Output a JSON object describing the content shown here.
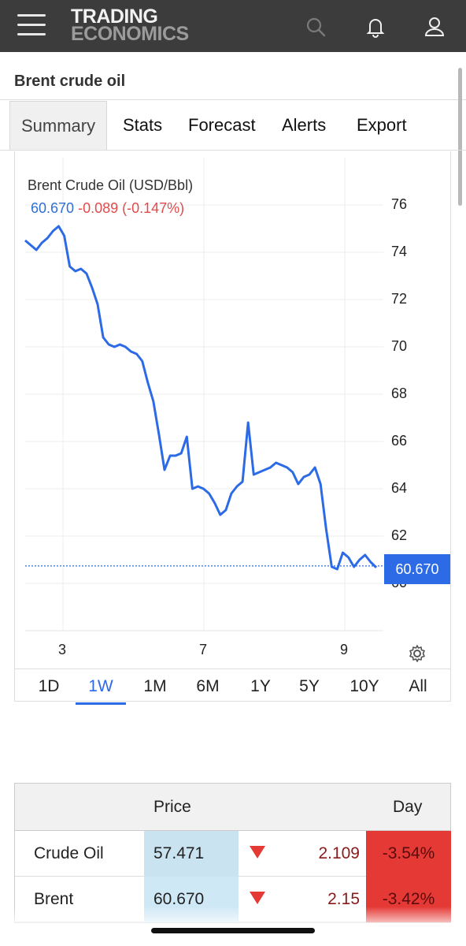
{
  "header": {
    "logo_line1": "TRADING",
    "logo_line2": "ECONOMICS",
    "icons": [
      "menu-icon",
      "search-icon",
      "bell-icon",
      "user-icon"
    ]
  },
  "page": {
    "title": "Brent crude oil"
  },
  "tabs": [
    {
      "label": "Summary",
      "active": true
    },
    {
      "label": "Stats"
    },
    {
      "label": "Forecast"
    },
    {
      "label": "Alerts"
    },
    {
      "label": "Export"
    }
  ],
  "chart": {
    "title": "Brent Crude Oil (USD/Bbl)",
    "last_value": "60.670",
    "change": "-0.089 (-0.147%)",
    "price_tag": "60.670",
    "colors": {
      "line": "#2c6ae6",
      "positive": "#2f6fd6",
      "negative": "#e24b4b"
    }
  },
  "chart_data": {
    "type": "line",
    "title": "Brent Crude Oil (USD/Bbl)",
    "xlabel": "",
    "ylabel": "",
    "x_ticks": [
      "3",
      "7",
      "9"
    ],
    "y_ticks": [
      60,
      62,
      64,
      66,
      68,
      70,
      72,
      74,
      76
    ],
    "ylim": [
      59,
      77
    ],
    "grid": true,
    "series": [
      {
        "values": [
          74.5,
          74.3,
          74.1,
          74.4,
          74.6,
          74.9,
          75.1,
          74.7,
          73.4,
          73.2,
          73.3,
          73.1,
          72.5,
          71.8,
          70.4,
          70.1,
          70.0,
          70.1,
          70.0,
          69.8,
          69.7,
          69.4,
          68.5,
          67.7,
          66.3,
          64.8,
          65.4,
          65.4,
          65.5,
          66.2,
          64.0,
          64.1,
          64.0,
          63.8,
          63.4,
          62.9,
          63.1,
          63.8,
          64.1,
          64.3,
          66.8,
          64.6,
          64.7,
          64.8,
          64.9,
          65.1,
          65.0,
          64.9,
          64.7,
          64.2,
          64.5,
          64.6,
          64.9,
          64.2,
          62.3,
          60.7,
          60.6,
          61.3,
          61.1,
          60.7,
          61.0,
          61.2,
          60.9,
          60.67
        ]
      }
    ]
  },
  "periods": [
    {
      "label": "1D"
    },
    {
      "label": "1W",
      "selected": true
    },
    {
      "label": "1M"
    },
    {
      "label": "6M"
    },
    {
      "label": "1Y"
    },
    {
      "label": "5Y"
    },
    {
      "label": "10Y"
    },
    {
      "label": "All"
    }
  ],
  "quotes": {
    "headers": {
      "price": "Price",
      "day": "Day"
    },
    "rows": [
      {
        "name": "Crude Oil",
        "price": "57.471",
        "change": "2.109",
        "pct": "-3.54%"
      },
      {
        "name": "Brent",
        "price": "60.670",
        "change": "2.15",
        "pct": "-3.42%"
      }
    ]
  }
}
